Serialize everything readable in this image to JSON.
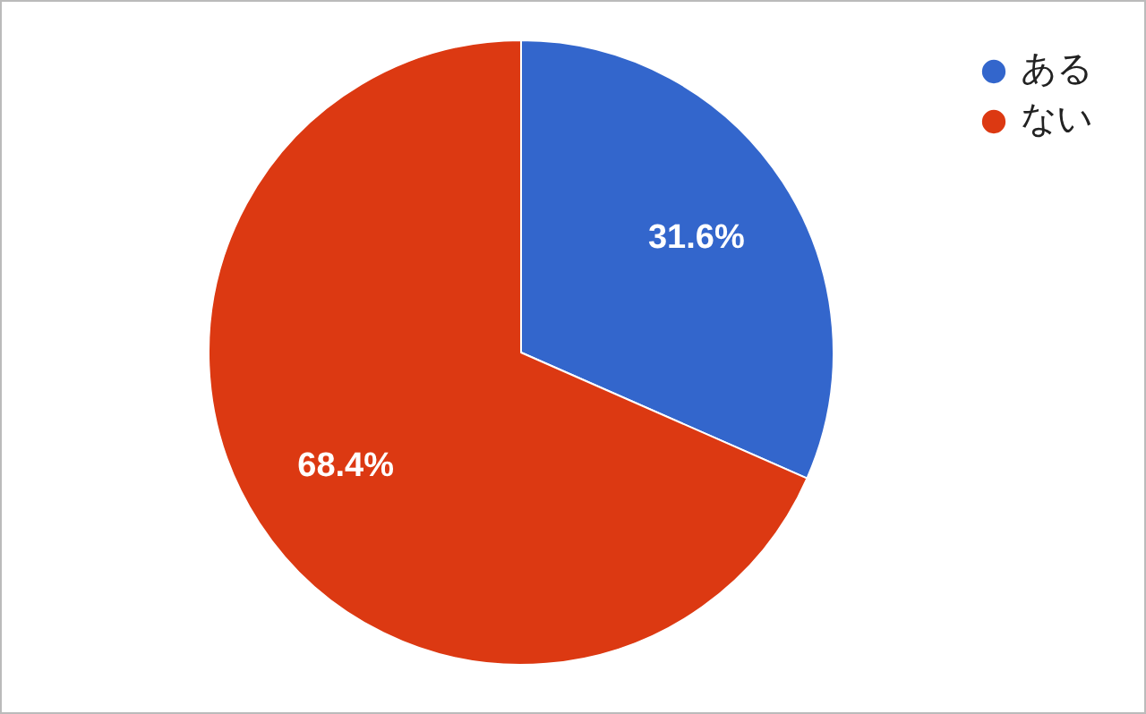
{
  "chart_data": {
    "type": "pie",
    "categories": [
      "ある",
      "ない"
    ],
    "values": [
      31.6,
      68.4
    ],
    "colors": [
      "#3366cc",
      "#dc3912"
    ],
    "value_labels": [
      "31.6%",
      "68.4%"
    ],
    "legend": "top right"
  }
}
